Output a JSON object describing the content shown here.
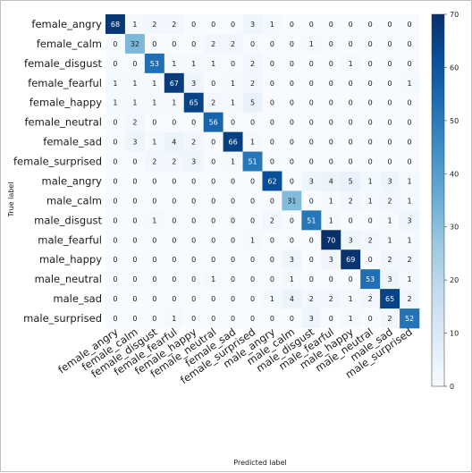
{
  "chart_data": {
    "type": "heatmap",
    "title": "",
    "xlabel": "Predicted label",
    "ylabel": "True label",
    "categories": [
      "female_angry",
      "female_calm",
      "female_disgust",
      "female_fearful",
      "female_happy",
      "female_neutral",
      "female_sad",
      "female_surprised",
      "male_angry",
      "male_calm",
      "male_disgust",
      "male_fearful",
      "male_happy",
      "male_neutral",
      "male_sad",
      "male_surprised"
    ],
    "matrix": [
      [
        68,
        1,
        2,
        2,
        0,
        0,
        0,
        3,
        1,
        0,
        0,
        0,
        0,
        0,
        0,
        0
      ],
      [
        0,
        32,
        0,
        0,
        0,
        2,
        2,
        0,
        0,
        0,
        1,
        0,
        0,
        0,
        0,
        0
      ],
      [
        0,
        0,
        53,
        1,
        1,
        1,
        0,
        2,
        0,
        0,
        0,
        0,
        1,
        0,
        0,
        0
      ],
      [
        1,
        1,
        1,
        67,
        3,
        0,
        1,
        2,
        0,
        0,
        0,
        0,
        0,
        0,
        0,
        1
      ],
      [
        1,
        1,
        1,
        1,
        65,
        2,
        1,
        5,
        0,
        0,
        0,
        0,
        0,
        0,
        0,
        0
      ],
      [
        0,
        2,
        0,
        0,
        0,
        56,
        0,
        0,
        0,
        0,
        0,
        0,
        0,
        0,
        0,
        0
      ],
      [
        0,
        3,
        1,
        4,
        2,
        0,
        66,
        1,
        0,
        0,
        0,
        0,
        0,
        0,
        0,
        0
      ],
      [
        0,
        0,
        2,
        2,
        3,
        0,
        1,
        51,
        0,
        0,
        0,
        0,
        0,
        0,
        0,
        0
      ],
      [
        0,
        0,
        0,
        0,
        0,
        0,
        0,
        0,
        62,
        0,
        3,
        4,
        5,
        1,
        3,
        1
      ],
      [
        0,
        0,
        0,
        0,
        0,
        0,
        0,
        0,
        0,
        31,
        0,
        1,
        2,
        1,
        2,
        1
      ],
      [
        0,
        0,
        1,
        0,
        0,
        0,
        0,
        0,
        2,
        0,
        51,
        1,
        0,
        0,
        1,
        3
      ],
      [
        0,
        0,
        0,
        0,
        0,
        0,
        0,
        1,
        0,
        0,
        0,
        70,
        3,
        2,
        1,
        1
      ],
      [
        0,
        0,
        0,
        0,
        0,
        0,
        0,
        0,
        0,
        3,
        0,
        3,
        69,
        0,
        2,
        2
      ],
      [
        0,
        0,
        0,
        0,
        0,
        1,
        0,
        0,
        0,
        1,
        0,
        0,
        0,
        53,
        3,
        1
      ],
      [
        0,
        0,
        0,
        0,
        0,
        0,
        0,
        0,
        1,
        4,
        2,
        2,
        1,
        2,
        65,
        2
      ],
      [
        0,
        0,
        0,
        1,
        0,
        0,
        0,
        0,
        0,
        0,
        3,
        0,
        1,
        0,
        2,
        52
      ]
    ],
    "colormap": "Blues",
    "vmin": 0,
    "vmax": 70,
    "colorbar_ticks": [
      0,
      10,
      20,
      30,
      40,
      50,
      60,
      70
    ],
    "grid": false
  }
}
